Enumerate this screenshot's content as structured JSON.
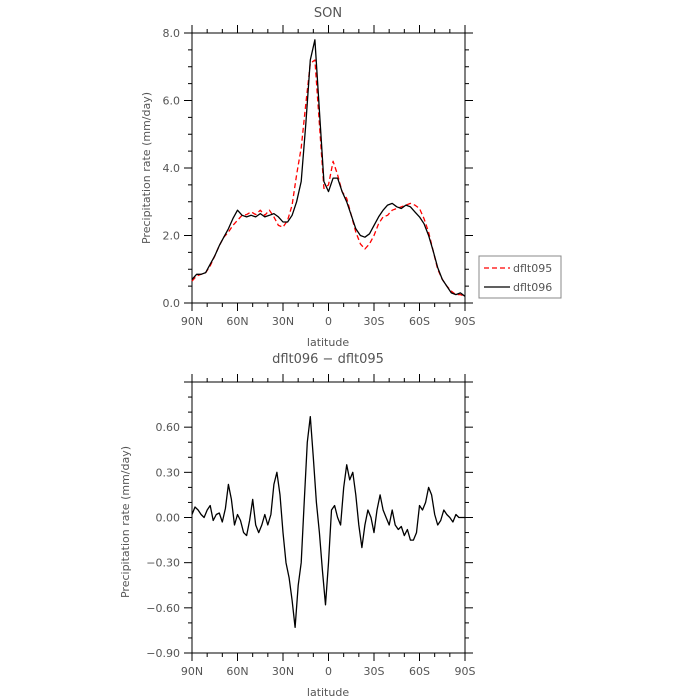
{
  "chart_data": [
    {
      "type": "line",
      "title": "SON",
      "xlabel": "latitude",
      "ylabel": "Precipitation rate (mm/day)",
      "xlim": [
        90,
        -90
      ],
      "ylim": [
        0,
        8
      ],
      "xticks": [
        90,
        60,
        30,
        0,
        -30,
        -60,
        -90
      ],
      "xtick_labels": [
        "90N",
        "60N",
        "30N",
        "0",
        "30S",
        "60S",
        "90S"
      ],
      "yticks": [
        0,
        2,
        4,
        6,
        8
      ],
      "ytick_labels": [
        "0.0",
        "2.0",
        "4.0",
        "6.0",
        "8.0"
      ],
      "legend_position": "right",
      "series": [
        {
          "name": "dflt095",
          "color": "#ff0000",
          "style": "dashed",
          "x": [
            90,
            87,
            84,
            81,
            78,
            75,
            72,
            69,
            66,
            63,
            60,
            57,
            54,
            51,
            48,
            45,
            42,
            39,
            36,
            33,
            30,
            27,
            24,
            21,
            18,
            15,
            12,
            9,
            6,
            3,
            0,
            -3,
            -6,
            -9,
            -12,
            -15,
            -18,
            -21,
            -24,
            -27,
            -30,
            -33,
            -36,
            -39,
            -42,
            -45,
            -48,
            -51,
            -54,
            -57,
            -60,
            -63,
            -66,
            -69,
            -72,
            -75,
            -78,
            -81,
            -84,
            -87,
            -90
          ],
          "y": [
            0.65,
            0.8,
            0.85,
            0.9,
            1.1,
            1.4,
            1.7,
            1.95,
            2.1,
            2.3,
            2.45,
            2.6,
            2.62,
            2.7,
            2.62,
            2.75,
            2.6,
            2.75,
            2.55,
            2.3,
            2.25,
            2.45,
            2.9,
            3.8,
            4.6,
            5.9,
            7.1,
            7.2,
            5.3,
            3.4,
            3.5,
            4.2,
            3.8,
            3.3,
            3.1,
            2.6,
            2.1,
            1.75,
            1.6,
            1.75,
            2.0,
            2.35,
            2.55,
            2.6,
            2.75,
            2.8,
            2.85,
            2.9,
            2.95,
            2.9,
            2.8,
            2.5,
            2.1,
            1.55,
            1.0,
            0.7,
            0.5,
            0.35,
            0.25,
            0.25,
            0.2
          ]
        },
        {
          "name": "dflt096",
          "color": "#000000",
          "style": "solid",
          "x": [
            90,
            87,
            84,
            81,
            78,
            75,
            72,
            69,
            66,
            63,
            60,
            57,
            54,
            51,
            48,
            45,
            42,
            39,
            36,
            33,
            30,
            27,
            24,
            21,
            18,
            15,
            12,
            9,
            6,
            3,
            0,
            -3,
            -6,
            -9,
            -12,
            -15,
            -18,
            -21,
            -24,
            -27,
            -30,
            -33,
            -36,
            -39,
            -42,
            -45,
            -48,
            -51,
            -54,
            -57,
            -60,
            -63,
            -66,
            -69,
            -72,
            -75,
            -78,
            -81,
            -84,
            -87,
            -90
          ],
          "y": [
            0.7,
            0.85,
            0.85,
            0.9,
            1.15,
            1.4,
            1.7,
            1.95,
            2.2,
            2.5,
            2.75,
            2.6,
            2.55,
            2.6,
            2.55,
            2.65,
            2.55,
            2.6,
            2.65,
            2.55,
            2.4,
            2.4,
            2.6,
            3.0,
            3.6,
            5.3,
            7.2,
            7.8,
            5.7,
            3.6,
            3.3,
            3.7,
            3.7,
            3.3,
            3.0,
            2.6,
            2.2,
            2.0,
            1.95,
            2.05,
            2.3,
            2.55,
            2.75,
            2.9,
            2.95,
            2.85,
            2.8,
            2.9,
            2.85,
            2.7,
            2.55,
            2.35,
            2.0,
            1.55,
            1.05,
            0.7,
            0.5,
            0.3,
            0.25,
            0.3,
            0.2
          ]
        }
      ]
    },
    {
      "type": "line",
      "title": "dflt096 − dflt095",
      "xlabel": "latitude",
      "ylabel": "Precipitation rate (mm/day)",
      "xlim": [
        90,
        -90
      ],
      "ylim": [
        -0.9,
        0.9
      ],
      "xticks": [
        90,
        60,
        30,
        0,
        -30,
        -60,
        -90
      ],
      "xtick_labels": [
        "90N",
        "60N",
        "30N",
        "0",
        "30S",
        "60S",
        "90S"
      ],
      "yticks": [
        -0.9,
        -0.6,
        -0.3,
        0,
        0.3,
        0.6
      ],
      "ytick_labels": [
        "−0.90",
        "−0.60",
        "−0.30",
        "0.00",
        "0.30",
        "0.60"
      ],
      "series": [
        {
          "name": "",
          "color": "#000000",
          "style": "solid",
          "x": [
            90,
            88,
            86,
            84,
            82,
            80,
            78,
            76,
            74,
            72,
            70,
            68,
            66,
            64,
            62,
            60,
            58,
            56,
            54,
            52,
            50,
            48,
            46,
            44,
            42,
            40,
            38,
            36,
            34,
            32,
            30,
            28,
            26,
            24,
            22,
            20,
            18,
            16,
            14,
            12,
            10,
            8,
            6,
            4,
            2,
            0,
            -2,
            -4,
            -6,
            -8,
            -10,
            -12,
            -14,
            -16,
            -18,
            -20,
            -22,
            -24,
            -26,
            -28,
            -30,
            -32,
            -34,
            -36,
            -38,
            -40,
            -42,
            -44,
            -46,
            -48,
            -50,
            -52,
            -54,
            -56,
            -58,
            -60,
            -62,
            -64,
            -66,
            -68,
            -70,
            -72,
            -74,
            -76,
            -78,
            -80,
            -82,
            -84,
            -86,
            -88,
            -90
          ],
          "y": [
            0.02,
            0.07,
            0.05,
            0.02,
            0.0,
            0.05,
            0.08,
            -0.02,
            0.02,
            0.03,
            -0.03,
            0.06,
            0.22,
            0.12,
            -0.05,
            0.02,
            -0.02,
            -0.1,
            -0.12,
            -0.02,
            0.12,
            -0.05,
            -0.1,
            -0.05,
            0.02,
            -0.05,
            0.02,
            0.22,
            0.3,
            0.15,
            -0.1,
            -0.3,
            -0.4,
            -0.55,
            -0.73,
            -0.45,
            -0.3,
            0.1,
            0.5,
            0.67,
            0.4,
            0.1,
            -0.1,
            -0.35,
            -0.58,
            -0.3,
            0.05,
            0.08,
            0.0,
            -0.05,
            0.2,
            0.35,
            0.25,
            0.3,
            0.15,
            -0.05,
            -0.2,
            -0.05,
            0.05,
            0.0,
            -0.1,
            0.05,
            0.15,
            0.05,
            0.0,
            -0.05,
            0.05,
            -0.05,
            -0.08,
            -0.06,
            -0.12,
            -0.08,
            -0.15,
            -0.15,
            -0.1,
            0.08,
            0.05,
            0.1,
            0.2,
            0.15,
            0.02,
            -0.05,
            -0.02,
            0.05,
            0.02,
            0.0,
            -0.03,
            0.02,
            0.0,
            0.0,
            0.0
          ]
        }
      ]
    }
  ]
}
